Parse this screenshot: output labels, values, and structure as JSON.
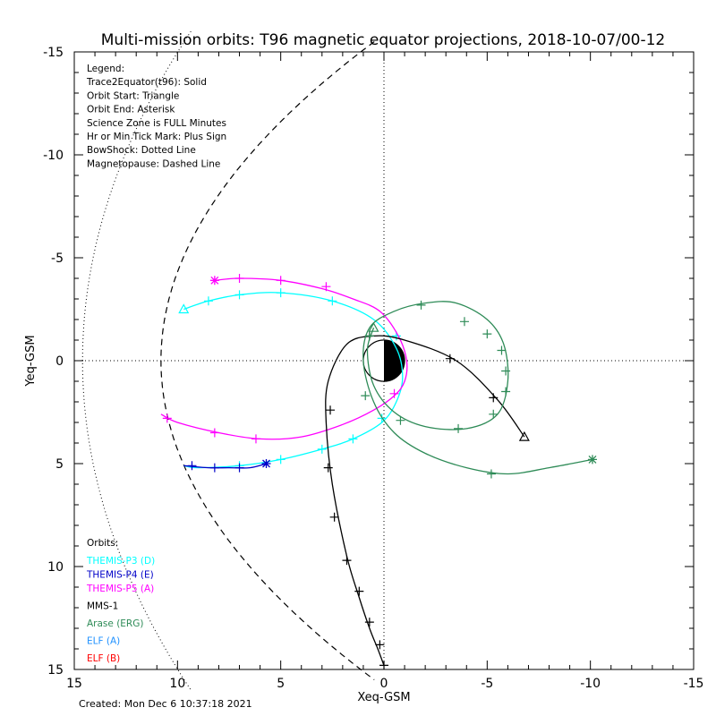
{
  "chart_data": {
    "type": "line",
    "title": "Multi-mission orbits: T96 magnetic equator projections, 2018-10-07/00-12",
    "xlabel": "Xeq-GSM",
    "ylabel": "Yeq-GSM",
    "xlim": [
      15,
      -15
    ],
    "ylim": [
      15,
      -15
    ],
    "xticks": [
      15,
      10,
      5,
      0,
      -5,
      -10,
      -15
    ],
    "yticks": [
      -15,
      -10,
      -5,
      0,
      5,
      10,
      15
    ],
    "grid": "dotted zero lines",
    "legend_text": [
      "Legend:",
      "Trace2Equator(t96): Solid",
      "Orbit Start: Triangle",
      "Orbit End: Asterisk",
      "Science Zone is FULL Minutes",
      "Hr or Min Tick Mark: Plus Sign",
      "BowShock: Dotted Line",
      "Magnetopause: Dashed Line"
    ],
    "orbits_heading": "Orbits:",
    "orbit_labels": [
      {
        "name": "THEMIS-P3 (D)",
        "color": "#00ffff"
      },
      {
        "name": "THEMIS-P4 (E)",
        "color": "#0000c8"
      },
      {
        "name": "THEMIS-P5 (A)",
        "color": "#ff00ff"
      },
      {
        "name": "MMS-1",
        "color": "#000000"
      },
      {
        "name": "Arase (ERG)",
        "color": "#2e8b57"
      },
      {
        "name": "ELF (A)",
        "color": "#1e90ff"
      },
      {
        "name": "ELF (B)",
        "color": "#ff0000"
      }
    ],
    "created": "Created: Mon Dec  6 10:37:18 2021",
    "series": [
      {
        "name": "THEMIS-P3 (D)",
        "color": "#00ffff",
        "x": [
          9.7,
          8.5,
          7.0,
          5.0,
          2.5,
          0.5,
          -0.6,
          -0.9,
          -0.6,
          0.1,
          1.5,
          3.0,
          5.0,
          7.0,
          9.0,
          9.7
        ],
        "y": [
          -2.5,
          -2.9,
          -3.2,
          -3.3,
          -2.9,
          -2.0,
          -0.6,
          0.8,
          2.0,
          3.0,
          3.8,
          4.3,
          4.8,
          5.1,
          5.2,
          5.1
        ],
        "ticks": [
          [
            8.5,
            -2.9
          ],
          [
            7.0,
            -3.2
          ],
          [
            5.0,
            -3.3
          ],
          [
            2.5,
            -2.9
          ],
          [
            -0.6,
            -1.2
          ],
          [
            0.1,
            2.8
          ],
          [
            1.5,
            3.8
          ],
          [
            3.0,
            4.3
          ],
          [
            5.0,
            4.8
          ],
          [
            7.0,
            5.1
          ]
        ],
        "start": [
          9.7,
          -2.5
        ],
        "end": null
      },
      {
        "name": "THEMIS-P4 (E)",
        "color": "#0000c8",
        "x": [
          9.7,
          8.5,
          7.5,
          6.5,
          5.7
        ],
        "y": [
          5.1,
          5.2,
          5.2,
          5.2,
          5.0
        ],
        "ticks": [
          [
            9.3,
            5.1
          ],
          [
            8.2,
            5.2
          ],
          [
            7.0,
            5.2
          ]
        ],
        "start": null,
        "end": [
          5.7,
          5.0
        ]
      },
      {
        "name": "THEMIS-P5 (A)",
        "color": "#ff00ff",
        "x": [
          8.2,
          7.0,
          5.0,
          3.0,
          1.5,
          0.2,
          -0.7,
          -1.1,
          -1.0,
          -0.5,
          0.5,
          2.0,
          4.0,
          6.0,
          8.0,
          10.0,
          10.8
        ],
        "y": [
          -3.9,
          -4.0,
          -3.9,
          -3.5,
          -3.0,
          -2.4,
          -1.2,
          0.0,
          1.0,
          1.7,
          2.4,
          3.1,
          3.7,
          3.8,
          3.5,
          3.0,
          2.6
        ],
        "ticks": [
          [
            7.0,
            -4.0
          ],
          [
            5.0,
            -3.9
          ],
          [
            2.8,
            -3.6
          ],
          [
            -0.5,
            1.6
          ],
          [
            6.2,
            3.8
          ],
          [
            8.2,
            3.5
          ],
          [
            10.5,
            2.8
          ]
        ],
        "start": null,
        "end": [
          8.2,
          -3.9
        ]
      },
      {
        "name": "MMS-1",
        "color": "#000000",
        "x": [
          -6.8,
          -5.5,
          -3.5,
          -1.0,
          0.5,
          1.8,
          2.7,
          2.8,
          2.5,
          1.8,
          1.2,
          0.7,
          0.3,
          0.0
        ],
        "y": [
          3.7,
          1.9,
          0.0,
          -1.0,
          -1.2,
          -0.8,
          1.0,
          3.0,
          6.0,
          9.5,
          11.5,
          13.0,
          14.0,
          14.8
        ],
        "ticks": [
          [
            -5.3,
            1.8
          ],
          [
            -3.2,
            -0.1
          ],
          [
            0.7,
            -1.2
          ],
          [
            2.6,
            2.4
          ],
          [
            2.7,
            5.2
          ],
          [
            2.4,
            7.6
          ],
          [
            1.8,
            9.7
          ],
          [
            1.2,
            11.2
          ],
          [
            0.7,
            12.7
          ],
          [
            0.2,
            13.8
          ],
          [
            0.0,
            14.8
          ]
        ],
        "start": [
          -6.8,
          3.7
        ],
        "end": null
      },
      {
        "name": "Arase (ERG)",
        "color": "#2e8b57",
        "x": [
          0.5,
          0.8,
          0.5,
          -0.5,
          -2.0,
          -4.0,
          -5.5,
          -6.0,
          -5.8,
          -5.0,
          -3.5,
          -2.0,
          -0.5,
          0.7,
          1.0,
          0.5,
          -0.5,
          -2.0,
          -4.0,
          -6.0,
          -8.0,
          -10.1
        ],
        "y": [
          -1.6,
          -0.5,
          1.2,
          2.5,
          3.2,
          3.3,
          2.6,
          1.0,
          -0.8,
          -2.0,
          -2.8,
          -2.8,
          -2.4,
          -1.6,
          0.0,
          2.0,
          3.5,
          4.5,
          5.2,
          5.5,
          5.2,
          4.8
        ],
        "ticks": [
          [
            -1.8,
            -2.7
          ],
          [
            -3.9,
            -1.9
          ],
          [
            -5.0,
            -1.3
          ],
          [
            -5.7,
            -0.5
          ],
          [
            -5.9,
            0.5
          ],
          [
            -5.9,
            1.5
          ],
          [
            -5.3,
            2.6
          ],
          [
            -3.6,
            3.3
          ],
          [
            -0.8,
            2.9
          ],
          [
            0.9,
            1.7
          ],
          [
            0.7,
            -1.2
          ],
          [
            -5.2,
            5.5
          ]
        ],
        "start": [
          0.5,
          -1.6
        ],
        "end": [
          -10.1,
          4.8
        ]
      }
    ],
    "bowshock": {
      "name": "BowShock",
      "style": "dotted"
    },
    "magnetopause": {
      "name": "Magnetopause",
      "style": "dashed"
    }
  }
}
